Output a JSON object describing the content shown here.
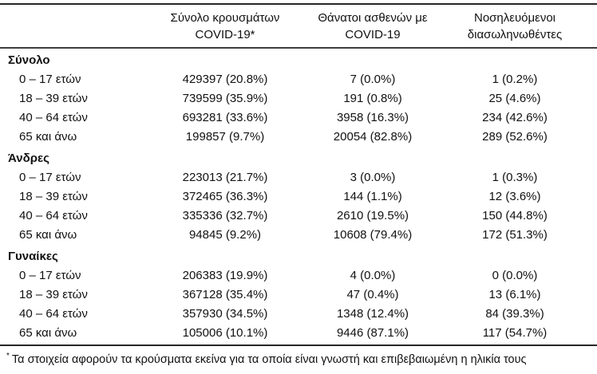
{
  "page": {
    "background": "#ffffff",
    "text_color": "#111111",
    "rule_color": "#262626"
  },
  "table": {
    "column_headers": [
      {
        "line1": "Σύνολο κρουσμάτων",
        "line2": "COVID-19*"
      },
      {
        "line1": "Θάνατοι ασθενών με",
        "line2": "COVID-19"
      },
      {
        "line1": "Νοσηλευόμενοι",
        "line2": "διασωληνωθέντες"
      }
    ],
    "groups": [
      {
        "label": "Σύνολο",
        "rows": [
          {
            "age": "0 – 17 ετών",
            "cases": "429397 (20.8%)",
            "deaths": "7 (0.0%)",
            "intubated": "1 (0.2%)"
          },
          {
            "age": "18 – 39 ετών",
            "cases": "739599 (35.9%)",
            "deaths": "191 (0.8%)",
            "intubated": "25 (4.6%)"
          },
          {
            "age": "40 – 64 ετών",
            "cases": "693281 (33.6%)",
            "deaths": "3958 (16.3%)",
            "intubated": "234 (42.6%)"
          },
          {
            "age": "65 και άνω",
            "cases": "199857 (9.7%)",
            "deaths": "20054 (82.8%)",
            "intubated": "289 (52.6%)"
          }
        ]
      },
      {
        "label": "Άνδρες",
        "rows": [
          {
            "age": "0 – 17 ετών",
            "cases": "223013 (21.7%)",
            "deaths": "3 (0.0%)",
            "intubated": "1 (0.3%)"
          },
          {
            "age": "18 – 39 ετών",
            "cases": "372465 (36.3%)",
            "deaths": "144 (1.1%)",
            "intubated": "12 (3.6%)"
          },
          {
            "age": "40 – 64 ετών",
            "cases": "335336 (32.7%)",
            "deaths": "2610 (19.5%)",
            "intubated": "150 (44.8%)"
          },
          {
            "age": "65 και άνω",
            "cases": "94845 (9.2%)",
            "deaths": "10608 (79.4%)",
            "intubated": "172 (51.3%)"
          }
        ]
      },
      {
        "label": "Γυναίκες",
        "rows": [
          {
            "age": "0 – 17 ετών",
            "cases": "206383 (19.9%)",
            "deaths": "4 (0.0%)",
            "intubated": "0 (0.0%)"
          },
          {
            "age": "18 – 39 ετών",
            "cases": "367128 (35.4%)",
            "deaths": "47 (0.4%)",
            "intubated": "13 (6.1%)"
          },
          {
            "age": "40 – 64 ετών",
            "cases": "357930 (34.5%)",
            "deaths": "1348 (12.4%)",
            "intubated": "84 (39.3%)"
          },
          {
            "age": "65 και άνω",
            "cases": "105006 (10.1%)",
            "deaths": "9446 (87.1%)",
            "intubated": "117 (54.7%)"
          }
        ]
      }
    ],
    "footnote_marker": "*",
    "footnote_text": "Τα στοιχεία αφορούν τα κρούσματα εκείνα για τα οποία είναι γνωστή και επιβεβαιωμένη η ηλικία τους"
  }
}
